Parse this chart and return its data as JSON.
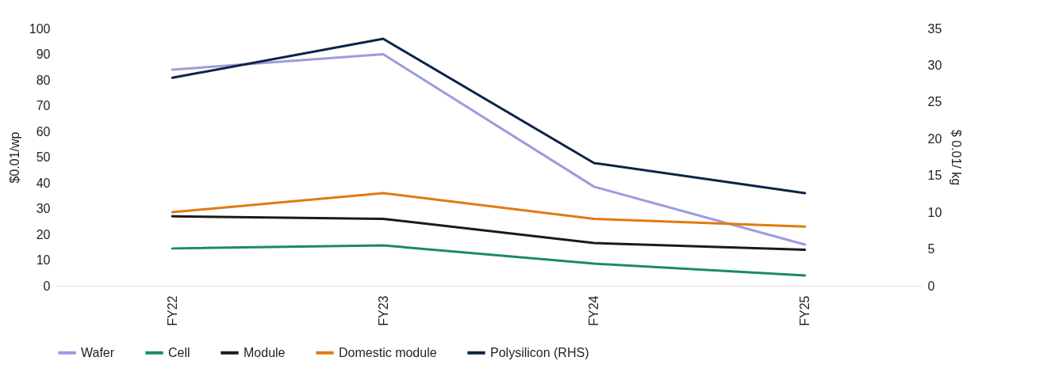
{
  "chart_data": {
    "type": "line",
    "ylabel": "$0.01/wp",
    "y2label": "$ 0.01/ kg",
    "categories": [
      "FY22",
      "FY23",
      "FY24",
      "FY25"
    ],
    "series": [
      {
        "name": "Wafer",
        "color": "#9e9ae0",
        "values": [
          84,
          90,
          38.5,
          16
        ]
      },
      {
        "name": "Cell",
        "color": "#1a8a6a",
        "values": [
          14.5,
          15.7,
          8.6,
          4
        ]
      },
      {
        "name": "Module",
        "color": "#1a1a1a",
        "values": [
          27,
          26,
          16.6,
          14
        ]
      },
      {
        "name": "Domestic module",
        "color": "#e07b10",
        "values": [
          28.6,
          36,
          26,
          23
        ]
      },
      {
        "name": "Polysilicon (RHS)",
        "color": "#0d2347",
        "axis": "y2",
        "values": [
          28.3,
          33.6,
          16.7,
          12.6
        ]
      }
    ],
    "ylim": [
      0,
      100
    ],
    "yticks": [
      0,
      10,
      20,
      30,
      40,
      50,
      60,
      70,
      80,
      90,
      100
    ],
    "y2lim": [
      0,
      35
    ],
    "y2ticks": [
      0,
      5,
      10,
      15,
      20,
      25,
      30,
      35
    ],
    "grid": false,
    "legend": "bottom",
    "marker": "none",
    "line_style": "solid"
  }
}
